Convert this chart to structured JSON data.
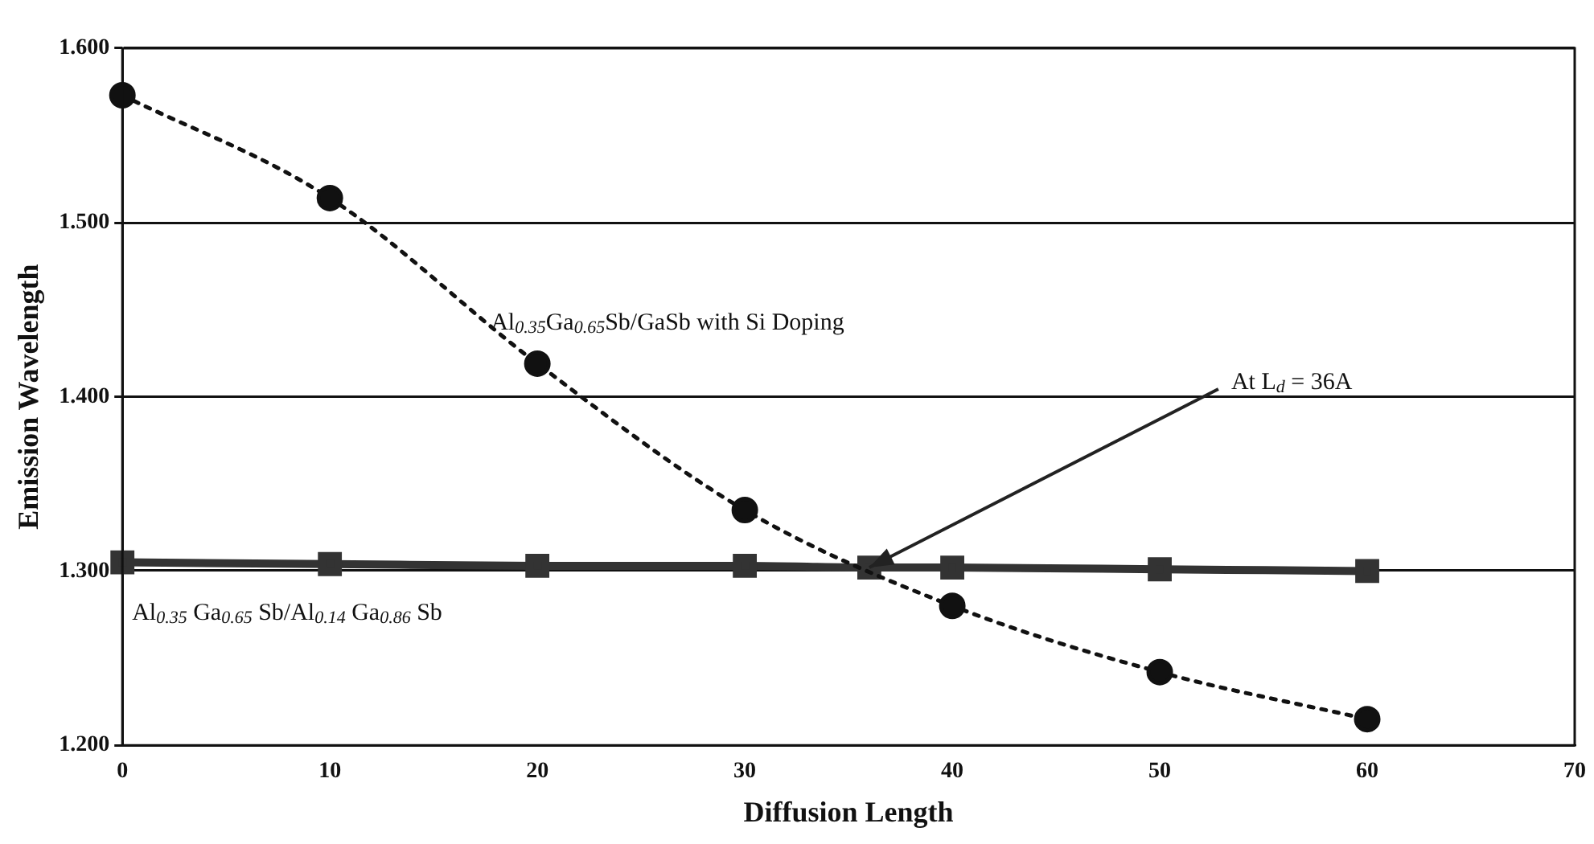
{
  "chart_data": {
    "type": "line",
    "xlabel": "Diffusion Length",
    "ylabel": "Emission Wavelength",
    "xlim": [
      0,
      70
    ],
    "xticks": [
      0,
      10,
      20,
      30,
      40,
      50,
      60,
      70
    ],
    "ylim": [
      1.2,
      1.6
    ],
    "yticks": [
      {
        "value": 1.2,
        "label": "1.200"
      },
      {
        "value": 1.3,
        "label": "1.300"
      },
      {
        "value": 1.4,
        "label": "1.400"
      },
      {
        "value": 1.5,
        "label": "1.500"
      },
      {
        "value": 1.6,
        "label": "1.600"
      }
    ],
    "grid": "y",
    "series": [
      {
        "name": "Al$_{0.35}$Ga$_{0.65}$Sb/GaSb with Si Doping",
        "color": "#111111",
        "marker": "circle",
        "line_style": "dotted",
        "x": [
          0,
          10,
          20,
          30,
          40,
          50,
          60
        ],
        "values": [
          1.573,
          1.514,
          1.419,
          1.335,
          1.28,
          1.242,
          1.215
        ]
      },
      {
        "name": "Al$_{0.35}$ Ga$_{0.65}$ Sb/Al$_{0.14}$ Ga$_{0.86}$ Sb",
        "color": "#333333",
        "marker": "square",
        "line_style": "solid",
        "x": [
          0,
          10,
          20,
          30,
          36,
          40,
          50,
          60
        ],
        "values": [
          1.305,
          1.304,
          1.303,
          1.303,
          1.302,
          1.302,
          1.301,
          1.3
        ]
      }
    ],
    "annotations": [
      {
        "text": "At L$_{d}$ = 36A",
        "x": 36,
        "y": 1.302
      }
    ]
  }
}
